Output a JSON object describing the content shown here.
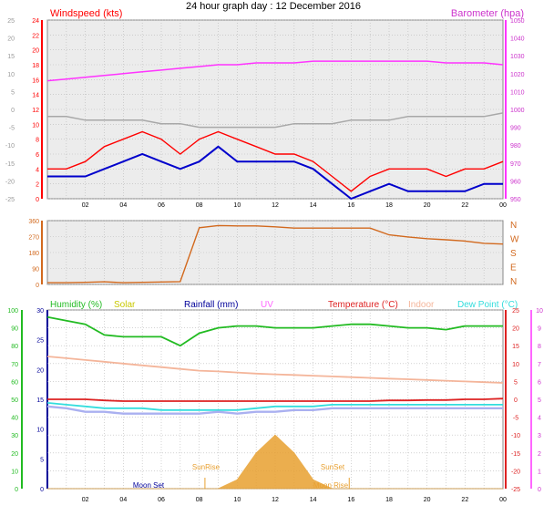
{
  "page_title": "24 hour graph day : 12 December 2016",
  "colors": {
    "windspeed": "#ff0000",
    "windspeed_avg": "#0000cc",
    "gust_grey": "#a8a8a8",
    "barometer": "#ff33ff",
    "direction": "#d2691e",
    "humidity": "#22bb22",
    "solar": "#e8a030",
    "rainfall": "#000099",
    "uv": "#ff66ff",
    "temperature": "#dd2222",
    "indoor": "#f4b59a",
    "dewpoint": "#33dddd",
    "apparent": "#aab0f0",
    "panel_bg": "#e8e8e8",
    "grid": "#b8b8b8"
  },
  "chart_data": [
    {
      "type": "line",
      "panel": "wind",
      "legend_left": "Windspeed (kts)",
      "legend_right": "Barometer (hpa)",
      "x": [
        0,
        1,
        2,
        3,
        4,
        5,
        6,
        7,
        8,
        9,
        10,
        11,
        12,
        13,
        14,
        15,
        16,
        17,
        18,
        19,
        20,
        21,
        22,
        23,
        24
      ],
      "xtick_labels": [
        "02",
        "04",
        "06",
        "08",
        "10",
        "12",
        "14",
        "16",
        "18",
        "20",
        "22",
        "00"
      ],
      "left_axis_red": {
        "ticks": [
          "24",
          "22",
          "20",
          "18",
          "16",
          "14",
          "12",
          "10",
          "8",
          "6",
          "4",
          "2",
          "0"
        ],
        "range": [
          0,
          24
        ]
      },
      "left_axis_grey": {
        "ticks": [
          "25",
          "20",
          "15",
          "10",
          "5",
          "0",
          "-5",
          "-10",
          "-15",
          "-20",
          "-25"
        ],
        "range": [
          -25,
          25
        ]
      },
      "right_axis": {
        "ticks": [
          "1050",
          "1040",
          "1030",
          "1020",
          "1010",
          "1000",
          "990",
          "980",
          "970",
          "960",
          "950"
        ],
        "range": [
          950,
          1050
        ]
      },
      "series": [
        {
          "name": "Windspeed (kts)",
          "axis": "left_red",
          "values": [
            4,
            4,
            5,
            7,
            8,
            9,
            8,
            6,
            8,
            9,
            8,
            7,
            6,
            6,
            5,
            3,
            1,
            3,
            4,
            4,
            4,
            3,
            4,
            4,
            5
          ]
        },
        {
          "axis": "left_red",
          "values": [
            3,
            3,
            3,
            4,
            5,
            6,
            5,
            4,
            5,
            7,
            5,
            5,
            5,
            5,
            4,
            2,
            0,
            1,
            2,
            1,
            1,
            1,
            1,
            2,
            2
          ]
        },
        {
          "axis": "left_grey",
          "values": [
            -2,
            -2,
            -3,
            -3,
            -3,
            -3,
            -4,
            -4,
            -5,
            -5,
            -5,
            -5,
            -5,
            -4,
            -4,
            -4,
            -3,
            -3,
            -3,
            -2,
            -2,
            -2,
            -2,
            -2,
            -1
          ]
        },
        {
          "name": "Barometer (hpa)",
          "axis": "right",
          "values": [
            1016,
            1017,
            1018,
            1019,
            1020,
            1021,
            1022,
            1023,
            1024,
            1025,
            1025,
            1026,
            1026,
            1026,
            1027,
            1027,
            1027,
            1027,
            1027,
            1027,
            1027,
            1026,
            1026,
            1026,
            1025
          ]
        }
      ]
    },
    {
      "type": "line",
      "panel": "direction",
      "x": [
        0,
        1,
        2,
        3,
        4,
        5,
        6,
        7,
        8,
        9,
        10,
        11,
        12,
        13,
        14,
        15,
        16,
        17,
        18,
        19,
        20,
        21,
        22,
        23,
        24
      ],
      "left_axis": {
        "ticks": [
          "360",
          "270",
          "180",
          "90",
          "0"
        ],
        "range": [
          0,
          360
        ]
      },
      "right_axis_labels": [
        "N",
        "W",
        "S",
        "E",
        "N"
      ],
      "series": [
        {
          "values": [
            10,
            10,
            12,
            15,
            10,
            12,
            14,
            16,
            320,
            332,
            330,
            330,
            325,
            318,
            318,
            318,
            318,
            318,
            280,
            268,
            258,
            252,
            245,
            232,
            228
          ]
        }
      ]
    },
    {
      "type": "line",
      "panel": "temperature",
      "legends": [
        "Humidity (%)",
        "Solar",
        "Rainfall (mm)",
        "UV",
        "Temperature (°C)",
        "Indoor",
        "Dew Point (°C)"
      ],
      "x": [
        0,
        1,
        2,
        3,
        4,
        5,
        6,
        7,
        8,
        9,
        10,
        11,
        12,
        13,
        14,
        15,
        16,
        17,
        18,
        19,
        20,
        21,
        22,
        23,
        24
      ],
      "axis_humidity": {
        "ticks": [
          "100",
          "90",
          "80",
          "70",
          "60",
          "50",
          "40",
          "30",
          "20",
          "10",
          "0"
        ],
        "range": [
          0,
          100
        ]
      },
      "axis_rain": {
        "ticks": [
          "30",
          "25",
          "20",
          "15",
          "10",
          "5",
          "0"
        ],
        "range": [
          0,
          30
        ]
      },
      "axis_temp": {
        "ticks": [
          "25",
          "20",
          "15",
          "10",
          "5",
          "0",
          "-5",
          "-10",
          "-15",
          "-20",
          "-25"
        ],
        "range": [
          -25,
          25
        ]
      },
      "axis_uv": {
        "ticks": [
          "10",
          "9",
          "8",
          "7",
          "6",
          "5",
          "4",
          "3",
          "2",
          "1",
          "0"
        ],
        "range": [
          0,
          10
        ]
      },
      "annotations": [
        "Moon Set",
        "SunRise",
        "SunSet",
        "Moon Rise"
      ],
      "series": [
        {
          "name": "Humidity (%)",
          "axis": "humidity",
          "values": [
            96,
            94,
            92,
            86,
            85,
            85,
            85,
            80,
            87,
            90,
            91,
            91,
            90,
            90,
            90,
            91,
            92,
            92,
            91,
            90,
            90,
            89,
            91,
            91,
            91
          ]
        },
        {
          "name": "Temperature (°C)",
          "axis": "temp",
          "values": [
            0,
            0,
            0,
            -0.3,
            -0.5,
            -0.5,
            -0.5,
            -0.5,
            -0.5,
            -0.5,
            -0.5,
            -0.5,
            -0.5,
            -0.5,
            -0.5,
            -0.5,
            -0.5,
            -0.5,
            -0.3,
            -0.3,
            -0.2,
            -0.2,
            0,
            0,
            0.2
          ]
        },
        {
          "name": "Indoor",
          "axis": "temp",
          "values": [
            12,
            11.5,
            11,
            10.5,
            10,
            9.5,
            9,
            8.5,
            8,
            7.8,
            7.5,
            7.2,
            7,
            6.8,
            6.6,
            6.4,
            6.2,
            6,
            5.8,
            5.6,
            5.4,
            5.2,
            5,
            4.8,
            4.6
          ]
        },
        {
          "name": "Dew Point (°C)",
          "axis": "temp",
          "values": [
            -1,
            -1.5,
            -2,
            -2.5,
            -2.5,
            -2.5,
            -3,
            -3,
            -3,
            -3,
            -3,
            -2.5,
            -2,
            -2,
            -2,
            -1.5,
            -1.5,
            -1.5,
            -1.5,
            -1.5,
            -1.5,
            -1.5,
            -1.5,
            -1.5,
            -1.5
          ]
        },
        {
          "axis": "temp",
          "values": [
            -2,
            -2.5,
            -3.5,
            -3.5,
            -4,
            -4,
            -4,
            -4,
            -4,
            -3.5,
            -4,
            -3.5,
            -3.5,
            -3,
            -3,
            -2.5,
            -2.5,
            -2.5,
            -2.5,
            -2.5,
            -2.5,
            -2.5,
            -2.5,
            -2.5,
            -2.5
          ]
        },
        {
          "name": "Solar",
          "axis": "solar",
          "values": [
            0,
            0,
            0,
            0,
            0,
            0,
            0,
            0,
            0,
            0,
            0.5,
            2,
            3,
            2,
            0.5,
            0,
            0,
            0,
            0,
            0,
            0,
            0,
            0,
            0,
            0
          ]
        }
      ]
    }
  ]
}
